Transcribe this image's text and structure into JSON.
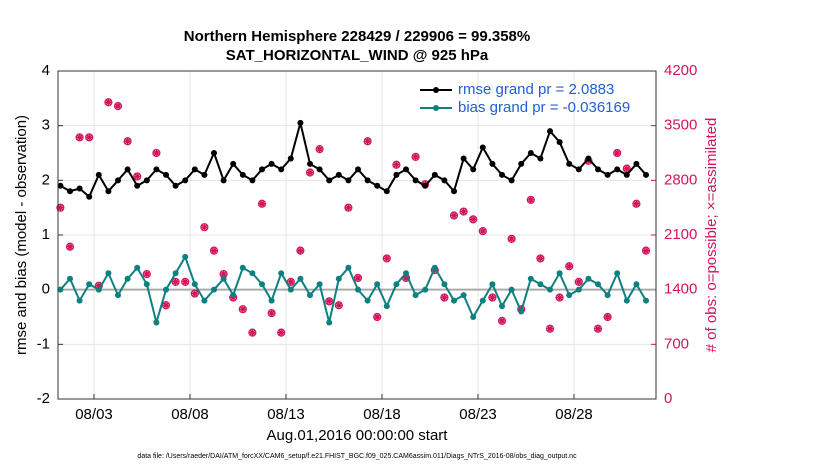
{
  "chart_data": {
    "type": "line",
    "title": "Northern Hemisphere 228429 / 229906 = 99.358%",
    "subtitle": "SAT_HORIZONTAL_WIND @ 925 hPa",
    "xlabel": "Aug.01,2016 00:00:00 start",
    "ylabel": "rmse and bias (model - observation)",
    "y2label": "# of obs: o=possible; ×=assimilated",
    "footnote": "data file: /Users/raeder/DAI/ATM_forcXX/CAM6_setup/f.e21.FHIST_BGC.f09_025.CAM6assim.011/Diags_NTrS_2016-08/obs_diag_output.nc",
    "x": [
      0.25,
      0.75,
      1.25,
      1.75,
      2.25,
      2.75,
      3.25,
      3.75,
      4.25,
      4.75,
      5.25,
      5.75,
      6.25,
      6.75,
      7.25,
      7.75,
      8.25,
      8.75,
      9.25,
      9.75,
      10.25,
      10.75,
      11.25,
      11.75,
      12.25,
      12.75,
      13.25,
      13.75,
      14.25,
      14.75,
      15.25,
      15.75,
      16.25,
      16.75,
      17.25,
      17.75,
      18.25,
      18.75,
      19.25,
      19.75,
      20.25,
      20.75,
      21.25,
      21.75,
      22.25,
      22.75,
      23.25,
      23.75,
      24.25,
      24.75,
      25.25,
      25.75,
      26.25,
      26.75,
      27.25,
      27.75,
      28.25,
      28.75,
      29.25,
      29.75,
      30.25,
      30.75
    ],
    "xlim": [
      0.125,
      31.27
    ],
    "xticks": [
      {
        "value": 2,
        "label": "08/03"
      },
      {
        "value": 7,
        "label": "08/08"
      },
      {
        "value": 12,
        "label": "08/13"
      },
      {
        "value": 17,
        "label": "08/18"
      },
      {
        "value": 22,
        "label": "08/23"
      },
      {
        "value": 27,
        "label": "08/28"
      }
    ],
    "ylim": [
      -2,
      4
    ],
    "yticks": [
      -2,
      -1,
      0,
      1,
      2,
      3,
      4
    ],
    "y2lim": [
      0,
      4200
    ],
    "y2ticks": [
      0,
      700,
      1400,
      2100,
      2800,
      3500,
      4200
    ],
    "grid": true,
    "legend": "upper right",
    "series": [
      {
        "name": "rmse grand pr = 2.0883",
        "color": "#000000",
        "values": [
          1.9,
          1.8,
          1.85,
          1.7,
          2.1,
          1.8,
          2.0,
          2.2,
          1.9,
          2.0,
          2.2,
          2.1,
          1.9,
          2.0,
          2.2,
          2.1,
          2.5,
          2.0,
          2.3,
          2.1,
          2.0,
          2.2,
          2.3,
          2.2,
          2.4,
          3.05,
          2.3,
          2.2,
          2.0,
          2.1,
          2.0,
          2.2,
          2.0,
          1.9,
          1.8,
          2.1,
          2.2,
          2.0,
          1.9,
          2.1,
          2.0,
          1.8,
          2.4,
          2.2,
          2.6,
          2.3,
          2.1,
          2.0,
          2.3,
          2.5,
          2.4,
          2.9,
          2.7,
          2.3,
          2.2,
          2.4,
          2.2,
          2.1,
          2.2,
          2.1,
          2.3,
          2.1
        ]
      },
      {
        "name": "bias grand pr = -0.036169",
        "color": "#0f8080",
        "values": [
          0.0,
          0.2,
          -0.2,
          0.1,
          0.0,
          0.3,
          -0.1,
          0.2,
          0.4,
          0.1,
          -0.6,
          0.0,
          0.3,
          0.6,
          0.1,
          -0.2,
          0.0,
          0.2,
          -0.1,
          0.4,
          0.3,
          0.1,
          -0.2,
          0.3,
          0.0,
          0.2,
          -0.1,
          0.1,
          -0.6,
          0.2,
          0.4,
          0.0,
          -0.2,
          0.1,
          -0.3,
          0.1,
          0.3,
          -0.1,
          0.0,
          0.4,
          0.1,
          -0.2,
          -0.1,
          -0.5,
          -0.2,
          0.1,
          -0.3,
          0.0,
          -0.4,
          0.2,
          0.1,
          0.0,
          0.3,
          -0.1,
          0.0,
          0.2,
          0.1,
          -0.1,
          0.3,
          -0.2,
          0.1,
          -0.2
        ]
      }
    ],
    "obs": {
      "color": "#d4145a",
      "axis": "y2",
      "values": [
        2450,
        1950,
        3350,
        3350,
        1450,
        3800,
        3750,
        3300,
        2850,
        1600,
        3150,
        1200,
        1500,
        1500,
        1350,
        2200,
        1900,
        1600,
        1300,
        1150,
        850,
        2500,
        1100,
        850,
        1500,
        1900,
        2900,
        3200,
        1250,
        1200,
        2450,
        1550,
        3300,
        1050,
        1800,
        3000,
        1550,
        3100,
        2750,
        1650,
        1300,
        2350,
        2400,
        2300,
        2150,
        1300,
        1000,
        2050,
        1150,
        2550,
        1800,
        900,
        1300,
        1700,
        1500,
        3050,
        900,
        1050,
        3150,
        2950,
        2500,
        1900
      ]
    }
  }
}
